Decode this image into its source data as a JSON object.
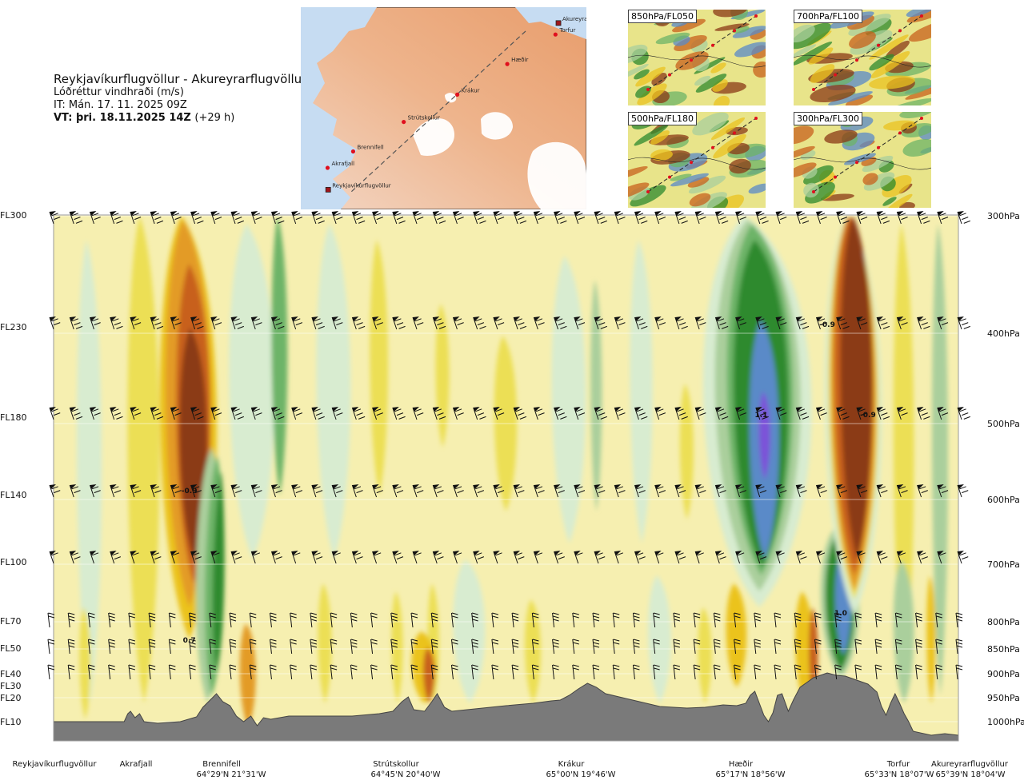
{
  "header": {
    "route_title": "Reykjavíkurflugvöllur - Akureyrarflugvöllur",
    "parameter": "Lóðréttur vindhraði (m/s)",
    "issue_time": "IT: Mán. 17. 11. 2025 09Z",
    "valid_prefix": "VT: þri. 18.11.2025 14Z",
    "valid_suffix": "(+29 h)"
  },
  "route_map": {
    "points": [
      {
        "name": "Akureyrarflugvöllur",
        "lat": 65.655,
        "lon": -18.07
      },
      {
        "name": "Torfur",
        "lat": 65.55,
        "lon": -18.12
      },
      {
        "name": "Hæðir",
        "lat": 65.28,
        "lon": -18.93
      },
      {
        "name": "Krákur",
        "lat": 65.0,
        "lon": -19.77
      },
      {
        "name": "Strútskollur",
        "lat": 64.75,
        "lon": -20.67
      },
      {
        "name": "Brennifell",
        "lat": 64.48,
        "lon": -21.52
      },
      {
        "name": "Akrafjall",
        "lat": 64.33,
        "lon": -21.95
      },
      {
        "name": "Reykjavíkurflugvöllur",
        "lat": 64.13,
        "lon": -21.94
      }
    ]
  },
  "insets": [
    {
      "label": "850hPa/FL050"
    },
    {
      "label": "700hPa/FL100"
    },
    {
      "label": "500hPa/FL180"
    },
    {
      "label": "300hPa/FL300"
    }
  ],
  "colors": {
    "down_strong": "#8b3a16",
    "down_mid": "#c8611c",
    "down_light": "#e39b25",
    "down_weak": "#ebc31f",
    "down_faint": "#ecdf55",
    "neutral": "#f6efb0",
    "up_faint": "#d8ecd0",
    "up_weak": "#aacf9c",
    "up_light": "#6db467",
    "up_mid": "#2e8a2e",
    "up_strong": "#1f6f1f",
    "up_blue": "#5a8ac8",
    "up_violet": "#7b52d8",
    "terrain": "#7a7a7a"
  },
  "chart_data": {
    "type": "heatmap",
    "title": "Lóðréttur vindhraði (m/s)",
    "y_levels_fl": [
      "FL300",
      "FL230",
      "FL180",
      "FL140",
      "FL100",
      "FL70",
      "FL50",
      "FL40",
      "FL30",
      "FL20",
      "FL10"
    ],
    "y_levels_hpa": [
      "300hPa",
      "400hPa",
      "500hPa",
      "600hPa",
      "700hPa",
      "800hPa",
      "850hPa",
      "900hPa",
      "950hPa",
      "1000hPa"
    ],
    "waypoints": [
      {
        "name": "Reykjavíkurflugvöllur",
        "coord": ""
      },
      {
        "name": "Akrafjall",
        "coord": ""
      },
      {
        "name": "Brennifell",
        "coord": "64°29'N 21°31'W"
      },
      {
        "name": "Strútskollur",
        "coord": "64°45'N 20°40'W"
      },
      {
        "name": "Krákur",
        "coord": "65°00'N 19°46'W"
      },
      {
        "name": "Hæðir",
        "coord": "65°17'N 18°56'W"
      },
      {
        "name": "Torfur",
        "coord": "65°33'N 18°07'W"
      },
      {
        "name": "Akureyrarflugvöllur",
        "coord": "65°39'N 18°04'W"
      }
    ],
    "annotations": [
      {
        "text": "-0.9",
        "position": 0.15,
        "level": "600hPa"
      },
      {
        "text": "0.7",
        "position": 0.15,
        "level": "850hPa"
      },
      {
        "text": "1.1",
        "position": 0.782,
        "level": "500hPa"
      },
      {
        "text": "1.0",
        "position": 0.87,
        "level": "800hPa"
      },
      {
        "text": "-0.9",
        "position": 0.855,
        "level": "400hPa"
      },
      {
        "text": "-0.9",
        "position": 0.9,
        "level": "500hPa"
      }
    ],
    "features": [
      {
        "kind": "downdraft",
        "center": 0.15,
        "top_level": "300hPa",
        "bottom_level": "850hPa",
        "peak": -0.9
      },
      {
        "kind": "updraft",
        "center": 0.17,
        "top_level": "500hPa",
        "bottom_level": "850hPa",
        "peak": 0.7
      },
      {
        "kind": "updraft",
        "center": 0.78,
        "top_level": "300hPa",
        "bottom_level": "700hPa",
        "peak": 1.1
      },
      {
        "kind": "updraft",
        "center": 0.87,
        "top_level": "700hPa",
        "bottom_level": "850hPa",
        "peak": 1.0
      },
      {
        "kind": "downdraft",
        "center": 0.88,
        "top_level": "300hPa",
        "bottom_level": "700hPa",
        "peak": -0.9
      }
    ]
  }
}
